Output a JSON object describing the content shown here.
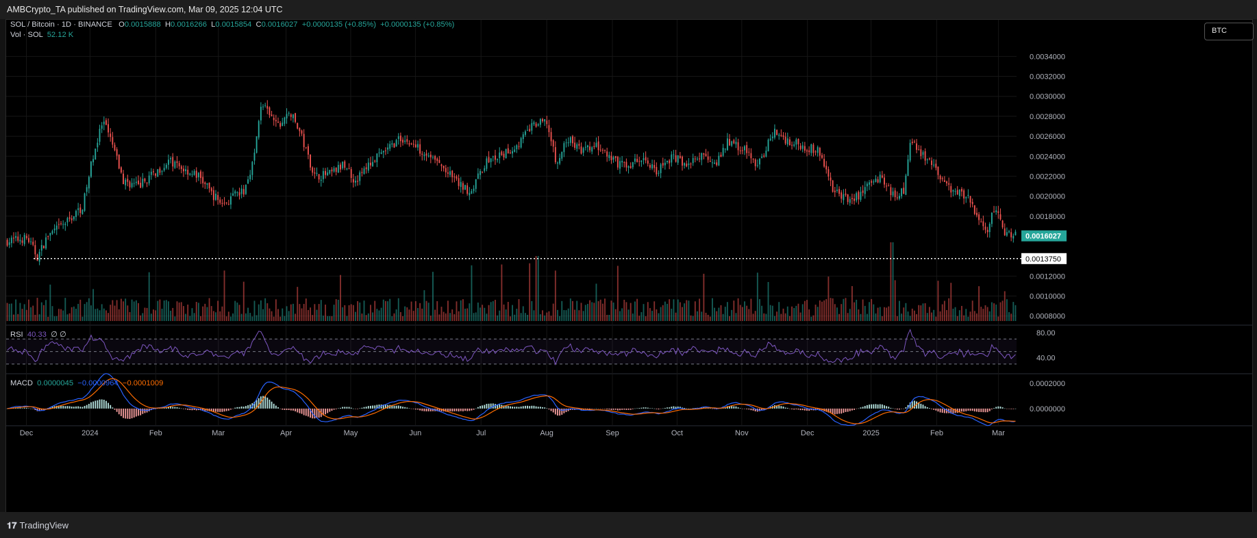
{
  "header": {
    "published": "AMBCrypto_TA published on TradingView.com, Mar 09, 2025 12:04 UTC"
  },
  "footer": {
    "brand": "TradingView"
  },
  "currency_button": "BTC",
  "legend": {
    "symbol": "SOL / Bitcoin · 1D · BINANCE",
    "o_label": "O",
    "o": "0.0015888",
    "h_label": "H",
    "h": "0.0016266",
    "l_label": "L",
    "l": "0.0015854",
    "c_label": "C",
    "c": "0.0016027",
    "change": "+0.0000135 (+0.85%)",
    "change2": "+0.0000135 (+0.85%)",
    "vol_label": "Vol · SOL",
    "vol": "52.12 K",
    "rsi_label": "RSI",
    "rsi": "40.33",
    "rsi_extra": "∅ ∅",
    "macd_label": "MACD",
    "macd": "0.0000045",
    "macd_signal": "−0.0000964",
    "macd_hist": "−0.0001009"
  },
  "colors": {
    "up": "#26a69a",
    "down": "#ef5350",
    "rsi": "#7e57c2",
    "macd": "#2962ff",
    "signal": "#ff6d00",
    "last_price_bg": "#26a69a"
  },
  "price_tag": "0.0016027",
  "level_tag": "0.0013750",
  "chart_data": {
    "type": "candlestick",
    "symbol": "SOL / Bitcoin",
    "interval": "1D",
    "exchange": "BINANCE",
    "y_ticks": [
      "0.0034000",
      "0.0032000",
      "0.0030000",
      "0.0028000",
      "0.0026000",
      "0.0024000",
      "0.0022000",
      "0.0020000",
      "0.0018000",
      "0.0012000",
      "0.0010000",
      "0.0008000"
    ],
    "y_tick_values": [
      0.0034,
      0.0032,
      0.003,
      0.0028,
      0.0026,
      0.0024,
      0.0022,
      0.002,
      0.0018,
      0.0012,
      0.001,
      0.0008
    ],
    "ylim": [
      0.00075,
      0.00356
    ],
    "last_price": 0.0016027,
    "horizontal_level": 0.001375,
    "x_ticks": [
      "Dec",
      "2024",
      "Feb",
      "Mar",
      "Apr",
      "May",
      "Jun",
      "Jul",
      "Aug",
      "Sep",
      "Oct",
      "Nov",
      "Dec",
      "2025",
      "Feb",
      "Mar"
    ],
    "x_tick_positions": [
      0.02,
      0.083,
      0.148,
      0.21,
      0.277,
      0.341,
      0.405,
      0.47,
      0.535,
      0.6,
      0.664,
      0.728,
      0.793,
      0.856,
      0.921,
      0.982
    ],
    "price_path": [
      [
        0,
        0.00155
      ],
      [
        0.02,
        0.00158
      ],
      [
        0.03,
        0.00139
      ],
      [
        0.04,
        0.0016
      ],
      [
        0.06,
        0.00175
      ],
      [
        0.075,
        0.0019
      ],
      [
        0.085,
        0.0024
      ],
      [
        0.095,
        0.00275
      ],
      [
        0.105,
        0.0025
      ],
      [
        0.115,
        0.00215
      ],
      [
        0.13,
        0.0021
      ],
      [
        0.145,
        0.00222
      ],
      [
        0.16,
        0.00235
      ],
      [
        0.175,
        0.00227
      ],
      [
        0.19,
        0.0022
      ],
      [
        0.205,
        0.002
      ],
      [
        0.215,
        0.00192
      ],
      [
        0.225,
        0.002
      ],
      [
        0.235,
        0.00205
      ],
      [
        0.245,
        0.0024
      ],
      [
        0.252,
        0.00295
      ],
      [
        0.26,
        0.0028
      ],
      [
        0.27,
        0.0027
      ],
      [
        0.28,
        0.00285
      ],
      [
        0.29,
        0.00265
      ],
      [
        0.305,
        0.0022
      ],
      [
        0.32,
        0.00222
      ],
      [
        0.335,
        0.00232
      ],
      [
        0.345,
        0.00215
      ],
      [
        0.36,
        0.00233
      ],
      [
        0.375,
        0.00245
      ],
      [
        0.39,
        0.00258
      ],
      [
        0.405,
        0.0025
      ],
      [
        0.42,
        0.0024
      ],
      [
        0.435,
        0.00225
      ],
      [
        0.45,
        0.0021
      ],
      [
        0.46,
        0.00205
      ],
      [
        0.475,
        0.00235
      ],
      [
        0.49,
        0.0024
      ],
      [
        0.505,
        0.0025
      ],
      [
        0.52,
        0.0027
      ],
      [
        0.535,
        0.00275
      ],
      [
        0.545,
        0.0023
      ],
      [
        0.555,
        0.00258
      ],
      [
        0.57,
        0.00245
      ],
      [
        0.585,
        0.0025
      ],
      [
        0.6,
        0.00235
      ],
      [
        0.615,
        0.0023
      ],
      [
        0.63,
        0.00238
      ],
      [
        0.645,
        0.00225
      ],
      [
        0.66,
        0.0024
      ],
      [
        0.675,
        0.00232
      ],
      [
        0.69,
        0.0024
      ],
      [
        0.705,
        0.00235
      ],
      [
        0.715,
        0.00255
      ],
      [
        0.73,
        0.00248
      ],
      [
        0.745,
        0.0023
      ],
      [
        0.76,
        0.00265
      ],
      [
        0.775,
        0.00255
      ],
      [
        0.79,
        0.0025
      ],
      [
        0.805,
        0.00245
      ],
      [
        0.82,
        0.00205
      ],
      [
        0.835,
        0.00195
      ],
      [
        0.85,
        0.00205
      ],
      [
        0.86,
        0.0022
      ],
      [
        0.87,
        0.00215
      ],
      [
        0.88,
        0.002
      ],
      [
        0.89,
        0.00205
      ],
      [
        0.895,
        0.00255
      ],
      [
        0.905,
        0.00245
      ],
      [
        0.915,
        0.00235
      ],
      [
        0.93,
        0.0021
      ],
      [
        0.945,
        0.00205
      ],
      [
        0.955,
        0.00195
      ],
      [
        0.965,
        0.00175
      ],
      [
        0.972,
        0.00165
      ],
      [
        0.98,
        0.0019
      ],
      [
        0.99,
        0.00162
      ],
      [
        1.0,
        0.0016
      ]
    ],
    "rsi": {
      "ylim": [
        20,
        90
      ],
      "ticks": [
        "80.00",
        "40.00"
      ],
      "tick_values": [
        80,
        40
      ],
      "bands": [
        70,
        50,
        30
      ],
      "last": 40.33
    },
    "macd": {
      "ticks": [
        "0.0002000",
        "0.0000000"
      ],
      "tick_values": [
        0.0002,
        0.0
      ],
      "ylim": [
        -0.00012,
        0.00026
      ]
    }
  }
}
